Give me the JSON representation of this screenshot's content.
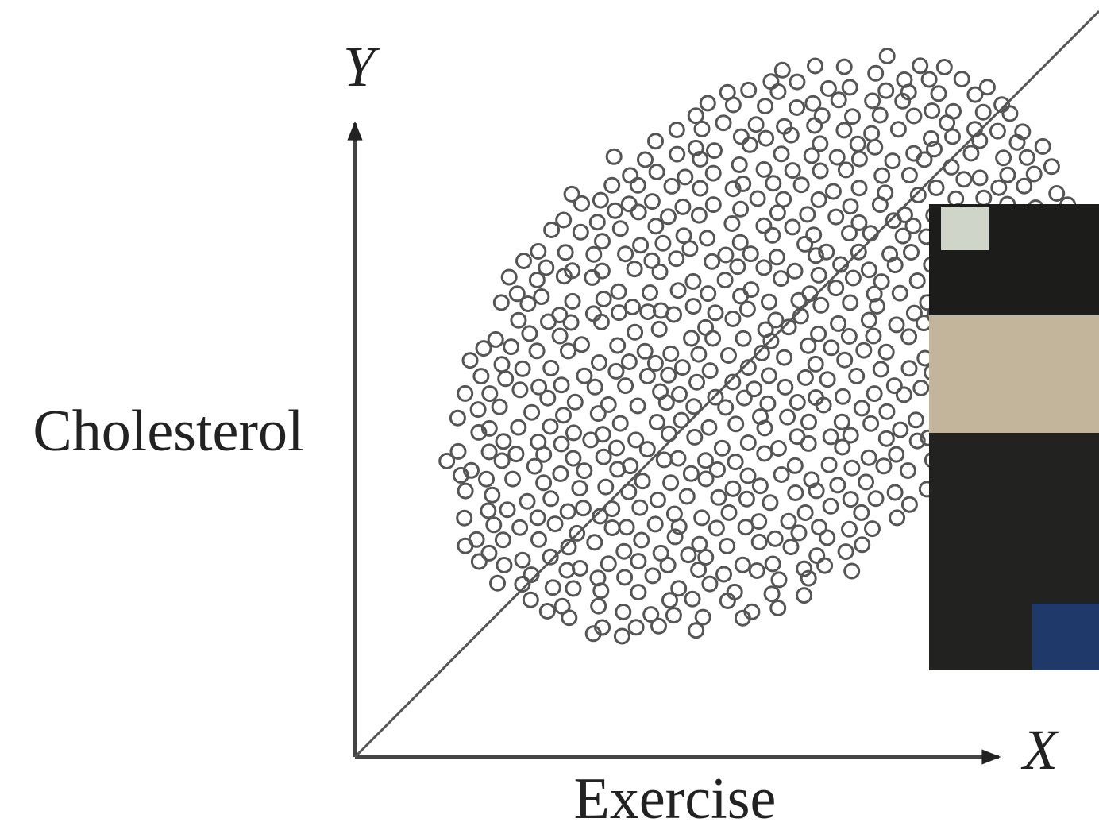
{
  "axes": {
    "y_symbol": "Y",
    "y_label": "Cholesterol",
    "x_symbol": "X",
    "x_label": "Exercise"
  }
}
